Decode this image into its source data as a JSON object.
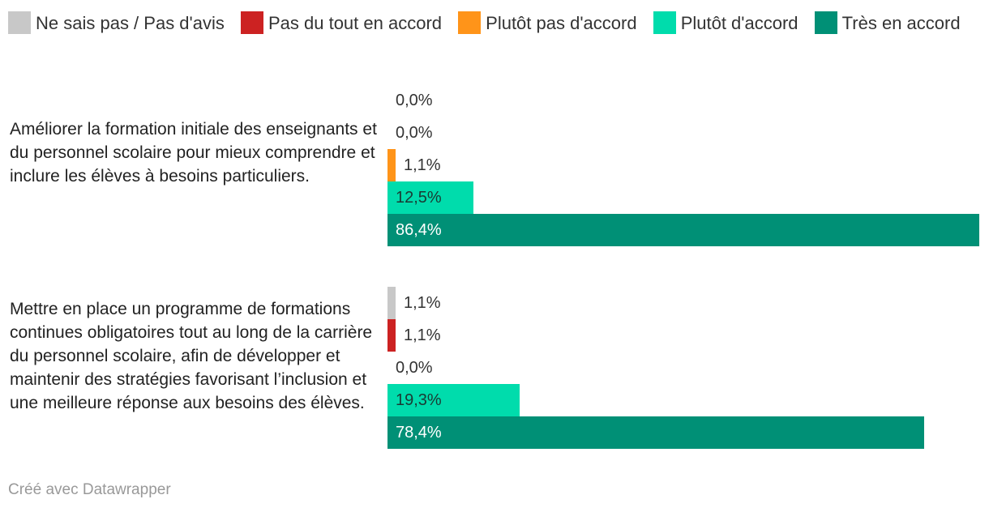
{
  "chart_data": {
    "type": "bar",
    "orientation": "horizontal",
    "legend": [
      {
        "name": "Ne sais pas / Pas d'avis",
        "color": "#c8c8c8"
      },
      {
        "name": "Pas du tout en accord",
        "color": "#cc2222"
      },
      {
        "name": "Plutôt pas d'accord",
        "color": "#ff9419"
      },
      {
        "name": "Plutôt d'accord",
        "color": "#00dcac"
      },
      {
        "name": "Très en accord",
        "color": "#009076"
      }
    ],
    "groups": [
      {
        "label": "Améliorer la formation initiale des enseignants et du personnel scolaire pour mieux comprendre et inclure les élèves à besoins particuliers.",
        "values": [
          0.0,
          0.0,
          1.1,
          12.5,
          86.4
        ],
        "labels": [
          "0,0%",
          "0,0%",
          "1,1%",
          "12,5%",
          "86,4%"
        ]
      },
      {
        "label": "Mettre en place un programme de formations continues obligatoires tout au long de la carrière du personnel scolaire, afin de développer et maintenir des stratégies favorisant l’inclusion et une meilleure réponse aux besoins des élèves.",
        "values": [
          1.1,
          1.1,
          0.0,
          19.3,
          78.4
        ],
        "labels": [
          "1,1%",
          "1,1%",
          "0,0%",
          "19,3%",
          "78,4%"
        ]
      }
    ],
    "xlim": [
      0,
      86.4
    ],
    "unit": "%"
  },
  "footer": {
    "credit": "Créé avec Datawrapper"
  }
}
